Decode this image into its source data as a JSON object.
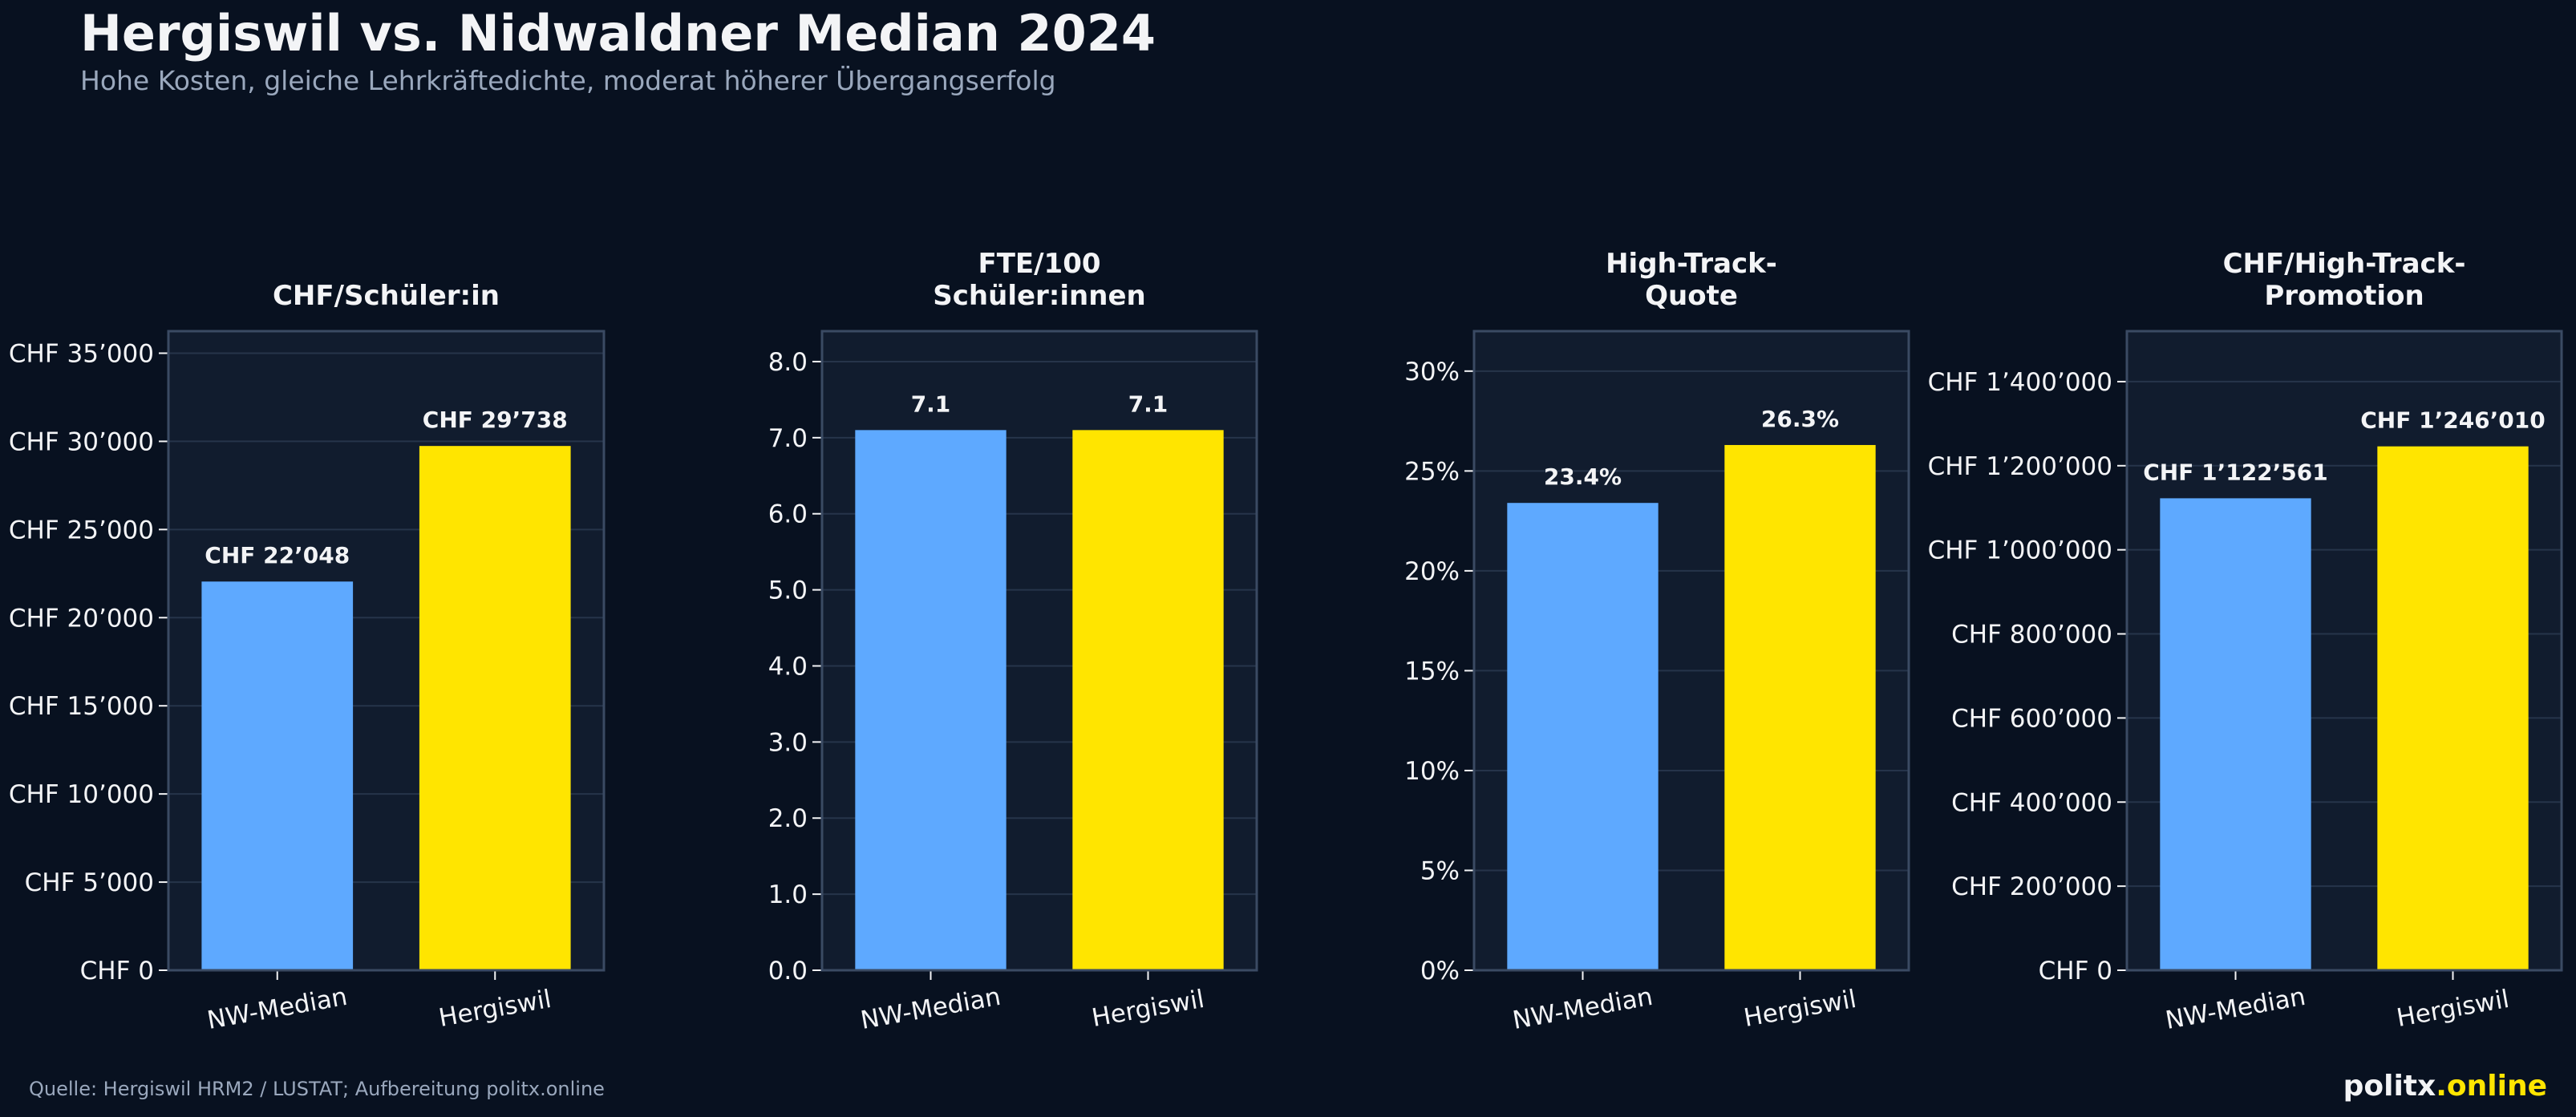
{
  "header": {
    "title": "Hergiswil vs. Nidwaldner Median 2024",
    "subtitle": "Hohe Kosten, gleiche Lehrkräftedichte, moderat höherer Übergangserfolg"
  },
  "footer": {
    "source": "Quelle: Hergiswil HRM2 / LUSTAT; Aufbereitung politx.online",
    "brand_main": "politx",
    "brand_accent": ".online"
  },
  "colors": {
    "background": "#081120",
    "panel": "#111c2e",
    "grid": "#26344a",
    "nw_median": "#5ea9ff",
    "hergiswil": "#ffe500",
    "text": "#f3f4f6",
    "muted": "#9aa8bd"
  },
  "chart_data": [
    {
      "type": "bar",
      "title": "CHF/Schüler:in",
      "categories": [
        "NW-Median",
        "Hergiswil"
      ],
      "values": [
        22048,
        29738
      ],
      "value_labels": [
        "CHF 22’048",
        "CHF 29’738"
      ],
      "ylim": [
        0,
        36250
      ],
      "yticks": [
        0,
        5000,
        10000,
        15000,
        20000,
        25000,
        30000,
        35000
      ],
      "ytick_labels": [
        "CHF 0",
        "CHF 5’000",
        "CHF 10’000",
        "CHF 15’000",
        "CHF 20’000",
        "CHF 25’000",
        "CHF 30’000",
        "CHF 35’000"
      ],
      "grid": true
    },
    {
      "type": "bar",
      "title": "FTE/100\nSchüler:innen",
      "categories": [
        "NW-Median",
        "Hergiswil"
      ],
      "values": [
        7.1,
        7.1
      ],
      "value_labels": [
        "7.1",
        "7.1"
      ],
      "ylim": [
        0,
        8.4
      ],
      "yticks": [
        0,
        1,
        2,
        3,
        4,
        5,
        6,
        7,
        8
      ],
      "ytick_labels": [
        "0.0",
        "1.0",
        "2.0",
        "3.0",
        "4.0",
        "5.0",
        "6.0",
        "7.0",
        "8.0"
      ],
      "grid": true
    },
    {
      "type": "bar",
      "title": "High-Track-\nQuote",
      "categories": [
        "NW-Median",
        "Hergiswil"
      ],
      "values": [
        23.4,
        26.3
      ],
      "value_labels": [
        "23.4%",
        "26.3%"
      ],
      "ylim": [
        0,
        32
      ],
      "yticks": [
        0,
        5,
        10,
        15,
        20,
        25,
        30
      ],
      "ytick_labels": [
        "0%",
        "5%",
        "10%",
        "15%",
        "20%",
        "25%",
        "30%"
      ],
      "grid": true
    },
    {
      "type": "bar",
      "title": "CHF/High-Track-\nPromotion",
      "categories": [
        "NW-Median",
        "Hergiswil"
      ],
      "values": [
        1122561,
        1246010
      ],
      "value_labels": [
        "CHF 1’122’561",
        "CHF 1’246’010"
      ],
      "ylim": [
        0,
        1520000
      ],
      "yticks": [
        0,
        200000,
        400000,
        600000,
        800000,
        1000000,
        1200000,
        1400000
      ],
      "ytick_labels": [
        "CHF 0",
        "CHF 200’000",
        "CHF 400’000",
        "CHF 600’000",
        "CHF 800’000",
        "CHF 1’000’000",
        "CHF 1’200’000",
        "CHF 1’400’000"
      ],
      "grid": true
    }
  ]
}
